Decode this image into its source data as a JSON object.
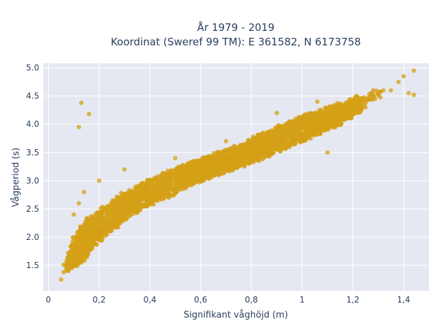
{
  "chart_data": {
    "type": "scatter",
    "title": "År 1979 - 2019",
    "subtitle": "Koordinat (Sweref 99 TM): E 361582, N 6173758",
    "xlabel": "Signifikant våghöjd (m)",
    "ylabel": "Vågperiod (s)",
    "xlim": [
      -0.02,
      1.5
    ],
    "ylim": [
      1.05,
      5.08
    ],
    "x_ticks": [
      0,
      0.2,
      0.4,
      0.6,
      0.8,
      1.0,
      1.2,
      1.4
    ],
    "x_tick_labels": [
      "0",
      "0,2",
      "0,4",
      "0,6",
      "0,8",
      "1",
      "1,2",
      "1,4"
    ],
    "y_ticks": [
      1.5,
      2.0,
      2.5,
      3.0,
      3.5,
      4.0,
      4.5,
      5.0
    ],
    "y_tick_labels": [
      "1.5",
      "2.0",
      "2.5",
      "3.0",
      "3.5",
      "4.0",
      "4.5",
      "5.0"
    ],
    "grid": true,
    "legend": "none",
    "colors": {
      "marker": "#d4a017",
      "plot_bg": "#e5e8f0",
      "grid": "#ffffff",
      "text": "#2a3f5f"
    },
    "series": [
      {
        "x": [
          0.05,
          0.06,
          0.07,
          0.08,
          0.09,
          0.1,
          0.11,
          0.12,
          0.13,
          0.14,
          0.15,
          0.16,
          0.18,
          0.2,
          0.22,
          0.24,
          0.26,
          0.28,
          0.3,
          0.32,
          0.34,
          0.36,
          0.38,
          0.4,
          0.42,
          0.44,
          0.46,
          0.48,
          0.5,
          0.52,
          0.54,
          0.56,
          0.58,
          0.6,
          0.62,
          0.64,
          0.66,
          0.68,
          0.7,
          0.72,
          0.74,
          0.76,
          0.78,
          0.8,
          0.82,
          0.84,
          0.86,
          0.88,
          0.9,
          0.92,
          0.94,
          0.96,
          0.98,
          1.0,
          1.02,
          1.04,
          1.06,
          1.08,
          1.1,
          1.12,
          1.14,
          1.16,
          1.18,
          1.2,
          1.22,
          1.24,
          1.26,
          1.28,
          1.3,
          1.32,
          1.35,
          1.38,
          1.4,
          1.42,
          1.44,
          1.44,
          0.12,
          0.13,
          0.16,
          0.1,
          0.12,
          0.14,
          0.2,
          0.3,
          0.5,
          0.7,
          0.9,
          1.06,
          1.1,
          0.95,
          1.25,
          1.28
        ],
        "y": [
          1.25,
          1.38,
          1.45,
          1.52,
          1.6,
          1.68,
          1.75,
          1.82,
          1.88,
          1.94,
          2.0,
          2.05,
          2.12,
          2.2,
          2.28,
          2.35,
          2.42,
          2.48,
          2.55,
          2.6,
          2.65,
          2.7,
          2.75,
          2.8,
          2.84,
          2.88,
          2.92,
          2.96,
          3.0,
          3.04,
          3.08,
          3.12,
          3.15,
          3.18,
          3.22,
          3.26,
          3.29,
          3.32,
          3.35,
          3.38,
          3.42,
          3.45,
          3.48,
          3.52,
          3.56,
          3.6,
          3.64,
          3.68,
          3.72,
          3.76,
          3.8,
          3.84,
          3.88,
          3.92,
          3.96,
          4.0,
          4.02,
          4.06,
          4.1,
          4.14,
          4.18,
          4.22,
          4.25,
          4.3,
          4.35,
          4.4,
          4.45,
          4.5,
          4.55,
          4.6,
          4.6,
          4.75,
          4.85,
          4.55,
          4.52,
          4.95,
          3.95,
          4.38,
          4.18,
          2.4,
          2.6,
          2.8,
          3.0,
          3.2,
          3.4,
          3.7,
          4.2,
          4.4,
          3.5,
          3.6,
          4.3,
          4.6
        ],
        "spread": [
          0.05,
          0.06,
          0.08,
          0.1,
          0.14,
          0.2,
          0.25,
          0.28,
          0.3,
          0.3,
          0.3,
          0.3,
          0.28,
          0.26,
          0.26,
          0.25,
          0.25,
          0.24,
          0.24,
          0.23,
          0.23,
          0.22,
          0.22,
          0.22,
          0.22,
          0.22,
          0.22,
          0.22,
          0.22,
          0.21,
          0.21,
          0.21,
          0.2,
          0.2,
          0.2,
          0.2,
          0.2,
          0.2,
          0.2,
          0.2,
          0.2,
          0.2,
          0.2,
          0.2,
          0.22,
          0.22,
          0.22,
          0.22,
          0.22,
          0.22,
          0.22,
          0.22,
          0.22,
          0.22,
          0.22,
          0.2,
          0.2,
          0.2,
          0.2,
          0.2,
          0.2,
          0.15,
          0.15,
          0.15,
          0.15,
          0.1,
          0.1,
          0.08,
          0.08,
          0.06,
          0.05,
          0.05,
          0.05,
          0.05,
          0.05,
          0.05,
          0.03,
          0.03,
          0.03,
          0.03,
          0.03,
          0.03,
          0.03,
          0.03,
          0.03,
          0.03,
          0.03,
          0.03,
          0.03,
          0.03,
          0.03,
          0.03
        ]
      }
    ]
  }
}
